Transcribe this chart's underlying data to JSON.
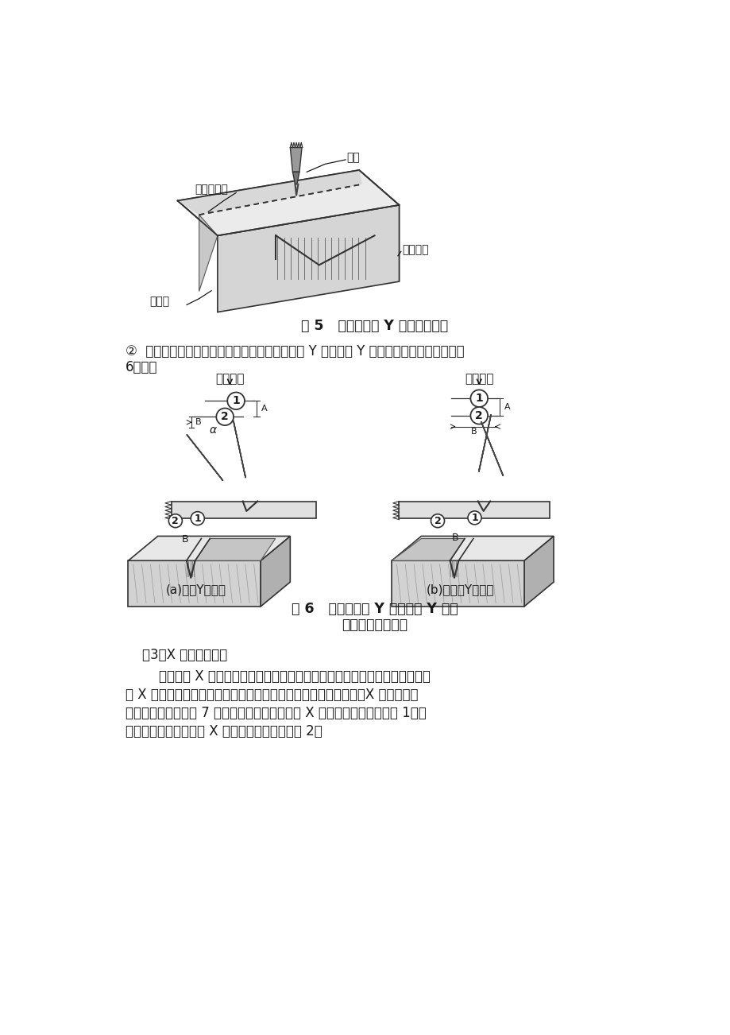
{
  "bg_color": "#ffffff",
  "fig_width": 9.2,
  "fig_height": 13.02,
  "dpi": 100,
  "fig5_caption": "图 5   单割炬切割 Y 形坡口的示意",
  "fig5_label_biekou": "坡口切割线",
  "fig5_label_gejian": "割嘴",
  "fig5_label_gongzui": "工件端面",
  "fig5_label_dunbian": "钝边线",
  "text_para2_line1": "②  双割炬切割可一次完成坡口制备。双割炬切割 Y 形（或倒 Y 形）坡口时的割嘴配置如图",
  "text_para2_line2": "6所示。",
  "fig6_label_a": "(a)切割Y形坡口",
  "fig6_label_b": "(b)切割倒Y形坡口",
  "fig6_caption_line1": "图 6   双割炬切割 Y 形（或倒 Y 形）",
  "fig6_caption_line2": "坡口时的割嘴配置",
  "text_para3_title": "    （3）X 形坡口的气割",
  "text_para3_lines": [
    "        不带钝边 X 形坡口可采用单割炬分二次切割，也可用双割炬一次割出。带钝",
    "边 X 形坡口可采用单割炬分次切割，也可用三割炬一次加工出来。X 形坡口一次",
    "切割的割嘴配置如图 7 所示。普通割嘴一次切割 X 形坡口的工艺参数见表 1，扩",
    "散型快速割嘴一次切割 X 形坡口的工艺参数见表 2。"
  ],
  "text_color": "#1a1a1a",
  "line_color": "#2a2a2a"
}
